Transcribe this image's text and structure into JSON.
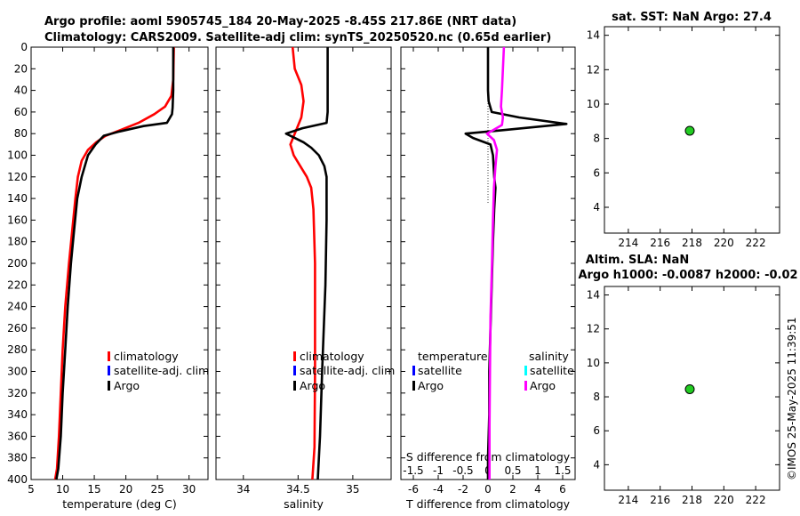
{
  "titles": {
    "line1": "Argo profile: aoml 5905745_184 20-May-2025 -8.45S 217.86E (NRT data)",
    "line2": "Climatology: CARS2009. Satellite-adj clim: synTS_20250520.nc (0.65d earlier)",
    "sst": "sat. SST: NaN Argo: 27.4",
    "sla1": "Altim. SLA: NaN",
    "sla2": "Argo h1000: -0.0087 h2000: -0.02"
  },
  "watermark": "©IMOS 25-May-2025 11:39:51",
  "colors": {
    "climatology": "#ff0000",
    "satellite_adj": "#0000ff",
    "argo": "#000000",
    "satellite_salinity": "#00ffff",
    "argo_salinity": "#ff00ff",
    "marker": "#22cc22"
  },
  "legends": {
    "temperature": [
      "climatology",
      "satellite-adj. clim",
      "Argo"
    ],
    "salinity": [
      "climatology",
      "satellite-adj. clim",
      "Argo"
    ],
    "difference": {
      "left_title": "temperature",
      "right_title": "salinity",
      "left_items": [
        "satellite",
        "Argo"
      ],
      "right_items": [
        "satellite",
        "Argo"
      ]
    }
  },
  "chart_data": [
    {
      "type": "line",
      "name": "temperature",
      "xlabel": "temperature (deg C)",
      "ylabel": "",
      "xlim": [
        5,
        33
      ],
      "xticks": [
        5,
        10,
        15,
        20,
        25,
        30
      ],
      "ylim": [
        0,
        400
      ],
      "yticks": [
        0,
        20,
        40,
        60,
        80,
        100,
        120,
        140,
        160,
        180,
        200,
        220,
        240,
        260,
        280,
        300,
        320,
        340,
        360,
        380,
        400
      ],
      "y_reversed": true,
      "series": [
        {
          "name": "climatology",
          "x": [
            27.6,
            27.5,
            27.2,
            26.2,
            24.5,
            22.0,
            19.0,
            16.8,
            15.3,
            14.0,
            13.0,
            12.4,
            12.0,
            11.5,
            11.0,
            10.4,
            10.0,
            9.7,
            9.4,
            9.1,
            8.8
          ],
          "depth": [
            0,
            30,
            45,
            55,
            62,
            70,
            77,
            82,
            88,
            95,
            105,
            120,
            140,
            170,
            200,
            240,
            280,
            320,
            360,
            390,
            400
          ]
        },
        {
          "name": "Argo",
          "x": [
            27.5,
            27.5,
            27.4,
            27.3,
            26.5,
            22.8,
            19.0,
            16.5,
            15.2,
            14.0,
            13.0,
            12.3,
            11.8,
            11.3,
            10.8,
            10.4,
            10.0,
            9.7,
            9.3,
            9.0
          ],
          "depth": [
            0,
            40,
            56,
            62,
            70,
            73,
            78,
            82,
            90,
            100,
            120,
            140,
            170,
            200,
            240,
            280,
            320,
            360,
            390,
            400
          ]
        }
      ]
    },
    {
      "type": "line",
      "name": "salinity",
      "xlabel": "salinity",
      "xlim": [
        33.75,
        35.35
      ],
      "xticks": [
        34,
        34.5,
        35
      ],
      "ylim": [
        0,
        400
      ],
      "y_reversed": true,
      "series": [
        {
          "name": "climatology",
          "x": [
            34.45,
            34.47,
            34.53,
            34.55,
            34.53,
            34.47,
            34.43,
            34.46,
            34.52,
            34.58,
            34.62,
            34.64,
            34.655,
            34.655,
            34.65,
            34.63
          ],
          "depth": [
            0,
            20,
            35,
            50,
            65,
            80,
            90,
            100,
            110,
            120,
            130,
            150,
            200,
            300,
            370,
            400
          ]
        },
        {
          "name": "Argo",
          "x": [
            34.77,
            34.77,
            34.77,
            34.76,
            34.54,
            34.39,
            34.55,
            34.62,
            34.69,
            34.74,
            34.76,
            34.76,
            34.75,
            34.72,
            34.7,
            34.68
          ],
          "depth": [
            0,
            30,
            60,
            70,
            75,
            80,
            88,
            93,
            100,
            110,
            120,
            160,
            220,
            300,
            360,
            400
          ]
        }
      ]
    },
    {
      "type": "line",
      "name": "difference",
      "xlabel": "T difference from climatology",
      "x2label": "S difference from climatology",
      "xlim": [
        -7,
        7
      ],
      "xticks": [
        -6,
        -4,
        -2,
        0,
        2,
        4,
        6
      ],
      "x2lim": [
        -1.75,
        1.75
      ],
      "x2ticks": [
        -1.5,
        -1,
        -0.5,
        0,
        0.5,
        1,
        1.5
      ],
      "x2ticklabels": [
        "-1.5",
        "-1",
        "-0.5",
        "0",
        "0.5",
        "1",
        "1.5"
      ],
      "ylim": [
        0,
        400
      ],
      "y_reversed": true,
      "series": [
        {
          "name": "T Argo",
          "x": [
            0.0,
            0.0,
            0.05,
            0.3,
            2.5,
            6.3,
            1.0,
            -1.8,
            -1.2,
            0.2,
            0.4,
            0.5,
            0.6,
            0.5,
            0.4,
            0.3,
            0.2,
            0.1,
            0.1,
            0.0,
            0.0
          ],
          "depth": [
            0,
            40,
            50,
            60,
            65,
            71,
            77,
            80,
            84,
            90,
            100,
            120,
            130,
            150,
            180,
            220,
            260,
            300,
            340,
            380,
            400
          ]
        },
        {
          "name": "S Argo",
          "x": [
            0.32,
            0.3,
            0.28,
            0.26,
            0.3,
            0.28,
            -0.02,
            0.12,
            0.18,
            0.15,
            0.12,
            0.1,
            0.08,
            0.05,
            0.04,
            0.03,
            0.03
          ],
          "depth": [
            0,
            20,
            40,
            55,
            65,
            72,
            80,
            86,
            95,
            110,
            130,
            160,
            200,
            250,
            300,
            350,
            400
          ]
        }
      ]
    },
    {
      "type": "scatter",
      "name": "sst_location",
      "xlim": [
        212.5,
        223.5
      ],
      "xticks": [
        214,
        216,
        218,
        220,
        222
      ],
      "ylim": [
        2.5,
        14.5
      ],
      "yticks": [
        4,
        6,
        8,
        10,
        12,
        14
      ],
      "points": [
        {
          "x": 217.86,
          "y": 8.45
        }
      ]
    },
    {
      "type": "scatter",
      "name": "sla_location",
      "xlim": [
        212.5,
        223.5
      ],
      "xticks": [
        214,
        216,
        218,
        220,
        222
      ],
      "ylim": [
        2.5,
        14.5
      ],
      "yticks": [
        4,
        6,
        8,
        10,
        12,
        14
      ],
      "points": [
        {
          "x": 217.86,
          "y": 8.45
        }
      ]
    }
  ]
}
